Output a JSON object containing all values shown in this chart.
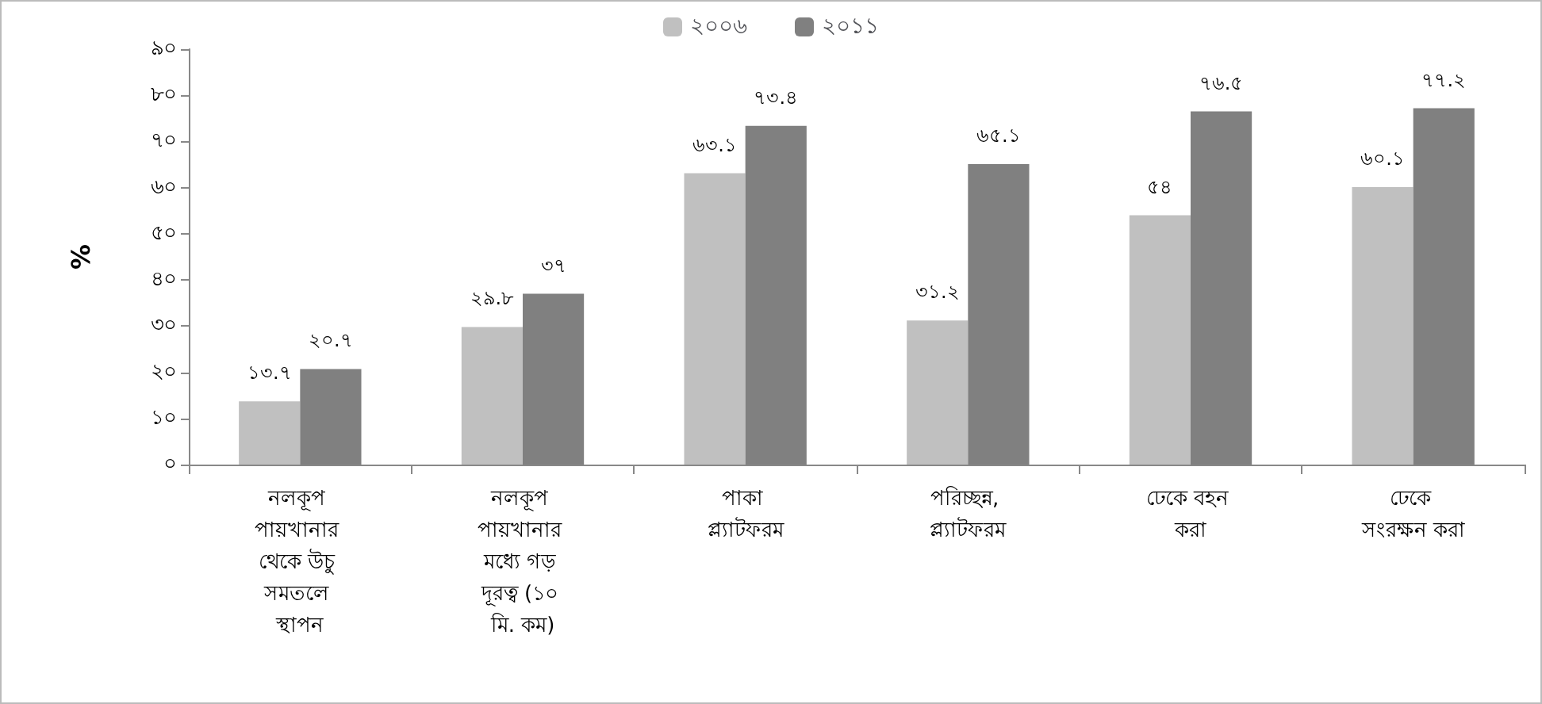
{
  "chart_data": {
    "type": "bar",
    "ylabel": "%",
    "categories": [
      "নলকূপ পায়খানার থেকে উচু সমতলে স্থাপন",
      "নলকূপ পায়খানার মধ্যে গড় দূরত্ব (১০ মি. কম)",
      "পাকা প্ল্যাটফরম",
      "পরিচ্ছন্ন, প্ল্যাটফরম",
      "ঢেকে বহন করা",
      "ঢেকে সংরক্ষন করা"
    ],
    "series": [
      {
        "name": "২০০৬",
        "color": "#c0c0c0",
        "values": [
          13.7,
          29.8,
          63.1,
          31.2,
          54,
          60.1
        ],
        "value_labels": [
          "১৩.৭",
          "২৯.৮",
          "৬৩.১",
          "৩১.২",
          "৫৪",
          "৬০.১"
        ]
      },
      {
        "name": "২০১১",
        "color": "#808080",
        "values": [
          20.7,
          37,
          73.4,
          65.1,
          76.5,
          77.2
        ],
        "value_labels": [
          "২০.৭",
          "৩৭",
          "৭৩.৪",
          "৬৫.১",
          "৭৬.৫",
          "৭৭.২"
        ]
      }
    ],
    "ylim": [
      0,
      90
    ],
    "yticks": [
      {
        "value": 0,
        "label": "০"
      },
      {
        "value": 10,
        "label": "১০"
      },
      {
        "value": 20,
        "label": "২০"
      },
      {
        "value": 30,
        "label": "৩০"
      },
      {
        "value": 40,
        "label": "৪০"
      },
      {
        "value": 50,
        "label": "৫০"
      },
      {
        "value": 60,
        "label": "৬০"
      },
      {
        "value": 70,
        "label": "৭০"
      },
      {
        "value": 80,
        "label": "৮০"
      },
      {
        "value": 90,
        "label": "৯০"
      }
    ],
    "grid": false,
    "legend": "top"
  }
}
